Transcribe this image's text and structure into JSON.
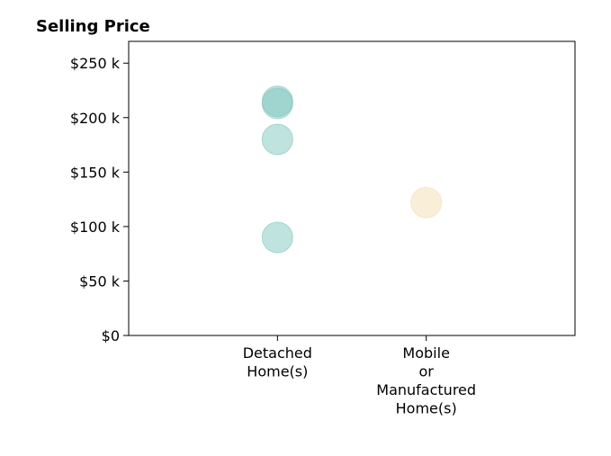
{
  "chart_data": {
    "type": "scatter",
    "title": "Selling Price",
    "xlabel": "",
    "ylabel": "",
    "categories": [
      [
        "Detached",
        "Home(s)"
      ],
      [
        "Mobile",
        "or",
        "Manufactured",
        "Home(s)"
      ]
    ],
    "x_category_positions": [
      1,
      2
    ],
    "xlim": [
      0,
      3
    ],
    "ylim": [
      0,
      270000
    ],
    "yticks": [
      0,
      50000,
      100000,
      150000,
      200000,
      250000
    ],
    "ytick_labels": [
      "$0",
      "$50 k",
      "$100 k",
      "$150 k",
      "$200 k",
      "$250 k"
    ],
    "grid": false,
    "points": [
      {
        "category": "Detached Home(s)",
        "x": 1,
        "y": 215000,
        "color": "#7fc7bd"
      },
      {
        "category": "Detached Home(s)",
        "x": 1,
        "y": 213000,
        "color": "#7fc7bd"
      },
      {
        "category": "Detached Home(s)",
        "x": 1,
        "y": 180000,
        "color": "#7fc7bd"
      },
      {
        "category": "Detached Home(s)",
        "x": 1,
        "y": 90000,
        "color": "#7fc7bd"
      },
      {
        "category": "Mobile or Manufactured Home(s)",
        "x": 2,
        "y": 122000,
        "color": "#f3ddb0"
      }
    ],
    "colors": {
      "detached": "#7fc7bd",
      "mobile": "#f3ddb0"
    }
  }
}
